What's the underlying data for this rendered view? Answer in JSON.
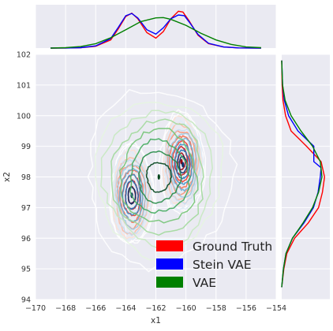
{
  "chart_data": {
    "type": "kde_jointplot",
    "title": "",
    "xlabel": "x1",
    "ylabel": "x2",
    "xlim": [
      -170,
      -154
    ],
    "ylim": [
      94,
      102
    ],
    "xticks": [
      -170,
      -168,
      -166,
      -164,
      -162,
      -160,
      -158,
      -156,
      -154
    ],
    "yticks": [
      94,
      95,
      96,
      97,
      98,
      99,
      100,
      101,
      102
    ],
    "grid": true,
    "legend_position": "lower-right",
    "series": [
      {
        "name": "Ground Truth",
        "color": "#ff0000",
        "contour_colormap": "reds",
        "modes": [
          {
            "x": -163.6,
            "y": 97.4,
            "sx": 0.45,
            "sy": 0.5
          },
          {
            "x": -160.3,
            "y": 98.5,
            "sx": 0.45,
            "sy": 0.5
          }
        ],
        "x_marginal": [
          [
            -169,
            0
          ],
          [
            -168,
            0.002
          ],
          [
            -167,
            0.01
          ],
          [
            -166,
            0.05
          ],
          [
            -165,
            0.22
          ],
          [
            -164.5,
            0.52
          ],
          [
            -164,
            0.86
          ],
          [
            -163.6,
            0.95
          ],
          [
            -163.2,
            0.8
          ],
          [
            -162.6,
            0.42
          ],
          [
            -162,
            0.27
          ],
          [
            -161.5,
            0.45
          ],
          [
            -161,
            0.8
          ],
          [
            -160.5,
            1.0
          ],
          [
            -160.2,
            0.98
          ],
          [
            -159.8,
            0.75
          ],
          [
            -159.2,
            0.35
          ],
          [
            -158.5,
            0.12
          ],
          [
            -157.5,
            0.03
          ],
          [
            -156.5,
            0.005
          ],
          [
            -155,
            0
          ]
        ],
        "y_marginal": [
          [
            94.4,
            0
          ],
          [
            95,
            0.05
          ],
          [
            95.5,
            0.12
          ],
          [
            96,
            0.3
          ],
          [
            96.5,
            0.62
          ],
          [
            97,
            0.86
          ],
          [
            97.5,
            0.95
          ],
          [
            98,
            1.0
          ],
          [
            98.5,
            0.92
          ],
          [
            99,
            0.58
          ],
          [
            99.5,
            0.22
          ],
          [
            100,
            0.09
          ],
          [
            100.5,
            0.03
          ],
          [
            101,
            0.01
          ],
          [
            101.8,
            0
          ]
        ]
      },
      {
        "name": "Stein VAE",
        "color": "#0000ff",
        "contour_colormap": "blues",
        "modes": [
          {
            "x": -163.6,
            "y": 97.4,
            "sx": 0.45,
            "sy": 0.5
          },
          {
            "x": -160.2,
            "y": 98.4,
            "sx": 0.45,
            "sy": 0.5
          }
        ],
        "x_marginal": [
          [
            -169,
            0
          ],
          [
            -168,
            0.002
          ],
          [
            -167,
            0.01
          ],
          [
            -166,
            0.06
          ],
          [
            -165,
            0.26
          ],
          [
            -164.5,
            0.56
          ],
          [
            -164,
            0.88
          ],
          [
            -163.6,
            0.94
          ],
          [
            -163.2,
            0.82
          ],
          [
            -162.6,
            0.5
          ],
          [
            -162,
            0.38
          ],
          [
            -161.5,
            0.55
          ],
          [
            -161,
            0.8
          ],
          [
            -160.5,
            0.9
          ],
          [
            -160.1,
            0.88
          ],
          [
            -159.8,
            0.72
          ],
          [
            -159.2,
            0.37
          ],
          [
            -158.5,
            0.13
          ],
          [
            -157.5,
            0.03
          ],
          [
            -156.5,
            0.005
          ],
          [
            -155,
            0
          ]
        ],
        "y_marginal": [
          [
            94.4,
            0
          ],
          [
            95,
            0.04
          ],
          [
            95.5,
            0.1
          ],
          [
            96,
            0.25
          ],
          [
            96.5,
            0.52
          ],
          [
            97,
            0.74
          ],
          [
            97.5,
            0.85
          ],
          [
            98,
            0.9
          ],
          [
            98.3,
            0.92
          ],
          [
            98.5,
            0.75
          ],
          [
            99,
            0.75
          ],
          [
            99.5,
            0.38
          ],
          [
            100,
            0.16
          ],
          [
            100.5,
            0.06
          ],
          [
            101,
            0.02
          ],
          [
            101.8,
            0
          ]
        ]
      },
      {
        "name": "VAE",
        "color": "#008000",
        "contour_colormap": "greens",
        "modes": [
          {
            "x": -161.8,
            "y": 98.0,
            "sx": 1.5,
            "sy": 0.9
          }
        ],
        "x_marginal": [
          [
            -169,
            0
          ],
          [
            -168,
            0.01
          ],
          [
            -167,
            0.04
          ],
          [
            -166,
            0.12
          ],
          [
            -165,
            0.28
          ],
          [
            -164,
            0.5
          ],
          [
            -163,
            0.72
          ],
          [
            -162,
            0.82
          ],
          [
            -161.5,
            0.83
          ],
          [
            -161,
            0.78
          ],
          [
            -160,
            0.62
          ],
          [
            -159,
            0.4
          ],
          [
            -158,
            0.22
          ],
          [
            -157,
            0.1
          ],
          [
            -156,
            0.03
          ],
          [
            -155,
            0.01
          ]
        ],
        "y_marginal": [
          [
            94.4,
            0
          ],
          [
            95,
            0.04
          ],
          [
            95.5,
            0.1
          ],
          [
            96,
            0.25
          ],
          [
            96.5,
            0.5
          ],
          [
            97,
            0.72
          ],
          [
            97.5,
            0.86
          ],
          [
            98,
            0.94
          ],
          [
            98.5,
            0.9
          ],
          [
            99,
            0.72
          ],
          [
            99.5,
            0.45
          ],
          [
            100,
            0.22
          ],
          [
            100.5,
            0.08
          ],
          [
            101,
            0.02
          ],
          [
            101.8,
            0
          ]
        ]
      }
    ]
  }
}
